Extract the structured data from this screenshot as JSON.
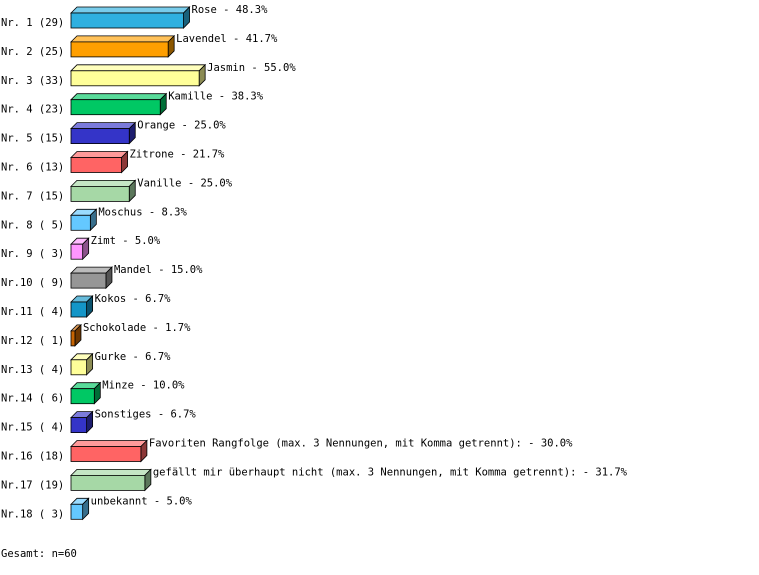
{
  "chart_data": {
    "type": "bar3d",
    "categories": [
      "Nr. 1 (29)",
      "Nr. 2 (25)",
      "Nr. 3 (33)",
      "Nr. 4 (23)",
      "Nr. 5 (15)",
      "Nr. 6 (13)",
      "Nr. 7 (15)",
      "Nr. 8 ( 5)",
      "Nr. 9 ( 3)",
      "Nr.10 ( 9)",
      "Nr.11 ( 4)",
      "Nr.12 ( 1)",
      "Nr.13 ( 4)",
      "Nr.14 ( 6)",
      "Nr.15 ( 4)",
      "Nr.16 (18)",
      "Nr.17 (19)",
      "Nr.18 ( 3)"
    ],
    "values": [
      48.3,
      41.7,
      55.0,
      38.3,
      25.0,
      21.7,
      25.0,
      8.3,
      5.0,
      15.0,
      6.7,
      1.7,
      6.7,
      10.0,
      6.7,
      30.0,
      31.7,
      5.0
    ],
    "value_labels": [
      "Rose -  48.3%",
      "Lavendel -  41.7%",
      "Jasmin -  55.0%",
      "Kamille -  38.3%",
      "Orange -  25.0%",
      "Zitrone -  21.7%",
      "Vanille -  25.0%",
      "Moschus -   8.3%",
      "Zimt -   5.0%",
      "Mandel -  15.0%",
      "Kokos -   6.7%",
      "Schokolade -   1.7%",
      "Gurke -   6.7%",
      "Minze -  10.0%",
      "Sonstiges -   6.7%",
      "Favoriten Rangfolge (max. 3 Nennungen, mit Komma getrennt): -  30.0%",
      "gefällt mir überhaupt nicht (max. 3 Nennungen, mit Komma getrennt): -  31.7%",
      "unbekannt -   5.0%"
    ],
    "colors": [
      "#2fb0e0",
      "#ff9f00",
      "#ffff99",
      "#00c864",
      "#3434c8",
      "#ff6464",
      "#a6d8a6",
      "#64c8ff",
      "#ff96ff",
      "#969696",
      "#1496c8",
      "#c86400",
      "#ffff99",
      "#00c864",
      "#3434c8",
      "#ff6464",
      "#a6d8a6",
      "#64c8ff"
    ],
    "footer": "Gesamt: n=60"
  }
}
